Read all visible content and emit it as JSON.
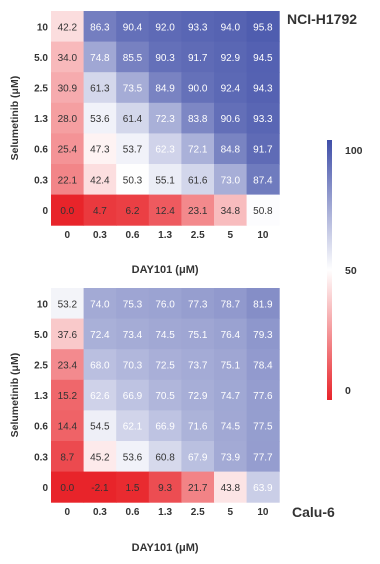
{
  "colors": {
    "high": "#3f4ea8",
    "mid": "#ffffff",
    "low": "#e8242a"
  },
  "colorbar": {
    "ticks": [
      "100",
      "50",
      "0"
    ],
    "min": 0,
    "max": 100
  },
  "chart_data": [
    {
      "type": "heatmap",
      "title": "NCI-H1792",
      "xlabel": "DAY101 (μM)",
      "ylabel": "Selumetinib (μM)",
      "x_categories": [
        "0",
        "0.3",
        "0.6",
        "1.3",
        "2.5",
        "5",
        "10"
      ],
      "y_categories": [
        "10",
        "5.0",
        "2.5",
        "1.3",
        "0.6",
        "0.3",
        "0"
      ],
      "values": [
        [
          "42.2",
          "86.3",
          "90.4",
          "92.0",
          "93.3",
          "94.0",
          "95.8"
        ],
        [
          "34.0",
          "74.8",
          "85.5",
          "90.3",
          "91.7",
          "92.9",
          "94.5"
        ],
        [
          "30.9",
          "61.3",
          "73.5",
          "84.9",
          "90.0",
          "92.4",
          "94.3"
        ],
        [
          "28.0",
          "53.6",
          "61.4",
          "72.3",
          "83.8",
          "90.6",
          "93.3"
        ],
        [
          "25.4",
          "47.3",
          "53.7",
          "62.3",
          "72.1",
          "84.8",
          "91.7"
        ],
        [
          "22.1",
          "42.4",
          "50.3",
          "55.1",
          "61.6",
          "73.0",
          "87.4"
        ],
        [
          "0.0",
          "4.7",
          "6.2",
          "12.4",
          "23.1",
          "34.8",
          "50.8"
        ]
      ],
      "color_range": [
        0,
        100
      ]
    },
    {
      "type": "heatmap",
      "title": "Calu-6",
      "xlabel": "DAY101 (μM)",
      "ylabel": "Selumetinib (μM)",
      "x_categories": [
        "0",
        "0.3",
        "0.6",
        "1.3",
        "2.5",
        "5",
        "10"
      ],
      "y_categories": [
        "10",
        "5.0",
        "2.5",
        "1.3",
        "0.6",
        "0.3",
        "0"
      ],
      "values": [
        [
          "53.2",
          "74.0",
          "75.3",
          "76.0",
          "77.3",
          "78.7",
          "81.9"
        ],
        [
          "37.6",
          "72.4",
          "73.4",
          "74.5",
          "75.1",
          "76.4",
          "79.3"
        ],
        [
          "23.4",
          "68.0",
          "70.3",
          "72.5",
          "73.7",
          "75.1",
          "78.4"
        ],
        [
          "15.2",
          "62.6",
          "66.9",
          "70.5",
          "72.9",
          "74.7",
          "77.6"
        ],
        [
          "14.4",
          "54.5",
          "62.1",
          "66.9",
          "71.6",
          "74.5",
          "77.5"
        ],
        [
          "8.7",
          "45.2",
          "53.6",
          "60.8",
          "67.9",
          "73.9",
          "77.7"
        ],
        [
          "0.0",
          "-2.1",
          "1.5",
          "9.3",
          "21.7",
          "43.8",
          "63.9"
        ]
      ],
      "color_range": [
        0,
        100
      ]
    }
  ]
}
